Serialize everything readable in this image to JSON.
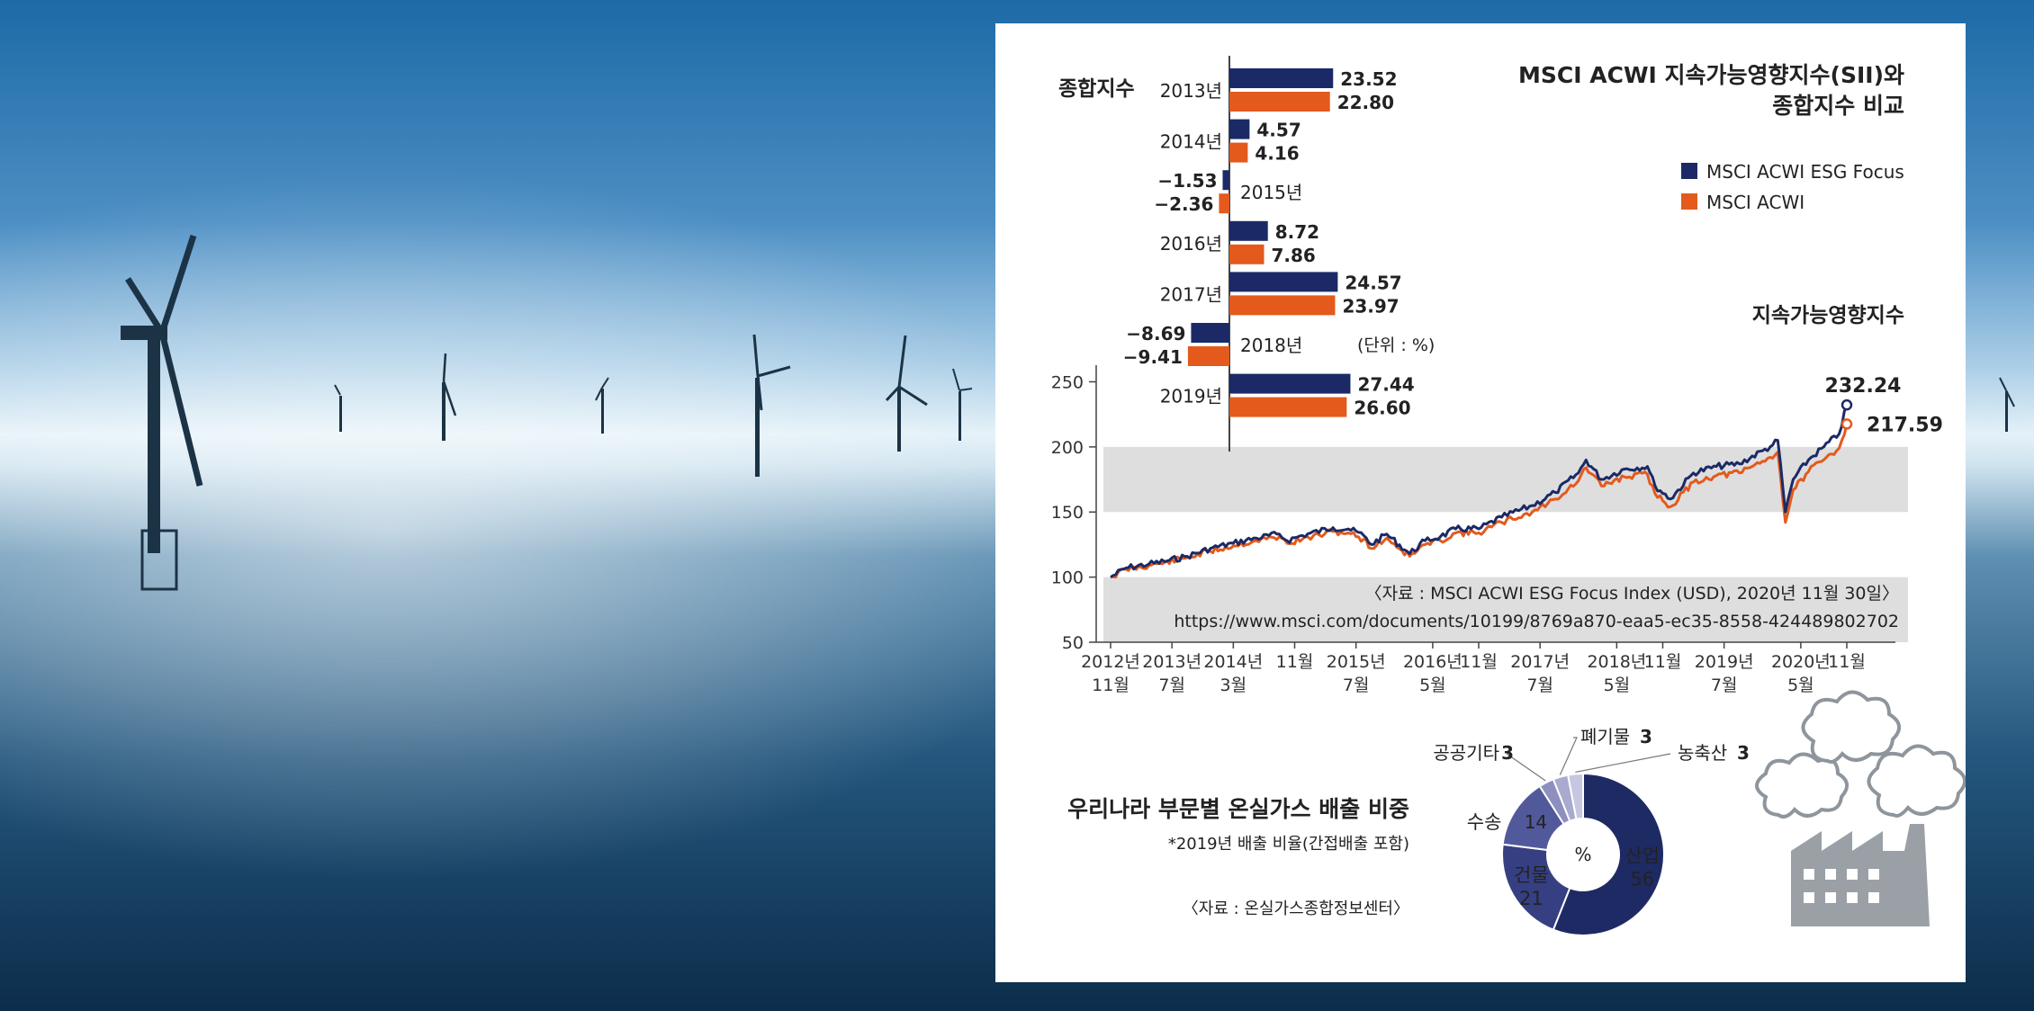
{
  "colors": {
    "esg": "#1b2a66",
    "acwi": "#e35a1c",
    "band": "#dedede",
    "donut_industry": "#1e2a63",
    "donut_building": "#363f82",
    "donut_transport": "#52599b",
    "donut_public": "#8d8fbf",
    "donut_waste": "#a9aacf",
    "donut_agri": "#c6c7e0",
    "factory": "#9aa0a6"
  },
  "icons": [
    "wind-turbine-icon",
    "factory-icon",
    "smoke-cloud-icon",
    "legend-square-icon"
  ],
  "chart_data": [
    {
      "type": "bar",
      "title": "MSCI ACWI 지속가능영향지수(SII)와\n종합지수 비교",
      "section_label": "종합지수",
      "unit_note": "(단위 : %)",
      "categories": [
        "2013년",
        "2014년",
        "2015년",
        "2016년",
        "2017년",
        "2018년",
        "2019년"
      ],
      "series": [
        {
          "name": "MSCI ACWI ESG Focus",
          "values": [
            23.52,
            4.57,
            -1.53,
            8.72,
            24.57,
            -8.69,
            27.44
          ],
          "labels": [
            "23.52",
            "4.57",
            "−1.53",
            "8.72",
            "24.57",
            "−8.69",
            "27.44"
          ]
        },
        {
          "name": "MSCI ACWI",
          "values": [
            22.8,
            4.16,
            -2.36,
            7.86,
            23.97,
            -9.41,
            26.6
          ],
          "labels": [
            "22.80",
            "4.16",
            "−2.36",
            "7.86",
            "23.97",
            "−9.41",
            "26.60"
          ]
        }
      ],
      "legend_placement": "right"
    },
    {
      "type": "line",
      "title": "지속가능영향지수",
      "ylim": [
        50,
        260
      ],
      "yticks": [
        "50",
        "100",
        "150",
        "200",
        "250"
      ],
      "grid": false,
      "xticks": [
        {
          "date": "2012-11",
          "l1": "2012년",
          "l2": "11월"
        },
        {
          "date": "2013-07",
          "l1": "2013년",
          "l2": "7월"
        },
        {
          "date": "2014-03",
          "l1": "2014년",
          "l2": "3월"
        },
        {
          "date": "2014-11",
          "l1": "11월",
          "l2": ""
        },
        {
          "date": "2015-07",
          "l1": "2015년",
          "l2": "7월"
        },
        {
          "date": "2016-05",
          "l1": "2016년",
          "l2": "5월"
        },
        {
          "date": "2016-11",
          "l1": "11월",
          "l2": ""
        },
        {
          "date": "2017-07",
          "l1": "2017년",
          "l2": "7월"
        },
        {
          "date": "2018-05",
          "l1": "2018년",
          "l2": "5월"
        },
        {
          "date": "2018-11",
          "l1": "11월",
          "l2": ""
        },
        {
          "date": "2019-07",
          "l1": "2019년",
          "l2": "7월"
        },
        {
          "date": "2020-05",
          "l1": "2020년",
          "l2": "5월"
        },
        {
          "date": "2020-11",
          "l1": "11월",
          "l2": ""
        }
      ],
      "x": [
        "2012-11",
        "2013-01",
        "2013-04",
        "2013-06",
        "2013-09",
        "2013-12",
        "2014-03",
        "2014-06",
        "2014-09",
        "2014-10",
        "2014-12",
        "2015-04",
        "2015-06",
        "2015-08",
        "2015-09",
        "2015-11",
        "2016-02",
        "2016-04",
        "2016-06",
        "2016-08",
        "2016-11",
        "2017-02",
        "2017-06",
        "2017-09",
        "2017-12",
        "2018-01",
        "2018-03",
        "2018-06",
        "2018-09",
        "2018-10",
        "2018-12",
        "2019-03",
        "2019-06",
        "2019-09",
        "2019-12",
        "2020-01",
        "2020-02",
        "2020-03",
        "2020-04",
        "2020-06",
        "2020-08",
        "2020-10",
        "2020-11"
      ],
      "series": [
        {
          "name": "MSCI ACWI ESG Focus",
          "end_label": "232.24",
          "values": [
            100,
            107,
            110,
            112,
            116,
            122,
            126,
            130,
            133,
            128,
            132,
            138,
            137,
            132,
            125,
            133,
            118,
            128,
            131,
            137,
            137,
            146,
            155,
            165,
            180,
            190,
            175,
            183,
            185,
            170,
            160,
            180,
            185,
            187,
            197,
            200,
            205,
            150,
            175,
            190,
            200,
            210,
            232.24
          ]
        },
        {
          "name": "MSCI ACWI",
          "end_label": "217.59",
          "values": [
            100,
            106,
            109,
            111,
            115,
            120,
            124,
            128,
            131,
            126,
            129,
            135,
            134,
            129,
            122,
            130,
            116,
            125,
            128,
            134,
            134,
            142,
            150,
            160,
            174,
            184,
            170,
            177,
            179,
            164,
            154,
            173,
            178,
            180,
            189,
            192,
            196,
            142,
            167,
            181,
            190,
            199,
            217.59
          ]
        }
      ],
      "bands": [
        [
          150,
          200
        ],
        [
          50,
          100
        ]
      ],
      "source_line1": "〈자료 : MSCI ACWI ESG Focus Index (USD), 2020년 11월 30일〉",
      "source_line2": "https://www.msci.com/documents/10199/8769a870-eaa5-ec35-8558-424489802702"
    },
    {
      "type": "pie",
      "title": "우리나라 부문별 온실가스 배출 비중",
      "subtitle": "*2019년 배출 비율(간접배출 포함)",
      "source": "〈자료 : 온실가스종합정보센터〉",
      "center_label": "%",
      "slices": [
        {
          "name": "산업",
          "value": 56,
          "label": "56"
        },
        {
          "name": "건물",
          "value": 21,
          "label": "21"
        },
        {
          "name": "수송",
          "value": 14,
          "label": "14"
        },
        {
          "name": "공공기타",
          "value": 3,
          "label": "3"
        },
        {
          "name": "폐기물",
          "value": 3,
          "label": "3"
        },
        {
          "name": "농축산",
          "value": 3,
          "label": "3"
        }
      ]
    }
  ]
}
